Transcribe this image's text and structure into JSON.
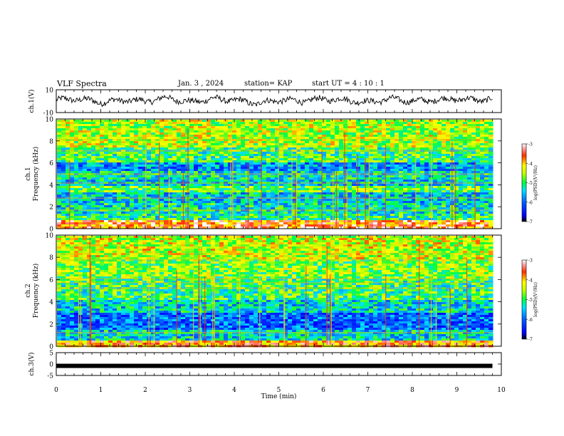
{
  "header": {
    "title": "VLF Spectra",
    "date": "Jan. 3 , 2024",
    "station": "station= KAP",
    "start": "start UT = 4 : 10 : 1"
  },
  "chart_data": [
    {
      "type": "line",
      "title": "",
      "ylabel": "ch.1(V)",
      "xlim": [
        0,
        10
      ],
      "ylim": [
        -10,
        10
      ],
      "yticks": [
        "10",
        "-10"
      ],
      "series": [
        {
          "description": "noisy waveform around 0 V, roughly -5 to +5 V",
          "x": [
            0,
            0.5,
            1,
            1.5,
            2,
            2.5,
            3,
            3.5,
            4,
            4.5,
            5,
            5.5,
            6,
            6.5,
            7,
            7.5,
            8,
            8.5,
            9,
            9.5,
            9.8
          ],
          "values": [
            1,
            2,
            -1,
            1,
            0,
            3,
            -1,
            2,
            1,
            -2,
            1,
            0,
            2,
            1,
            -1,
            2,
            0,
            1,
            2,
            1,
            2
          ]
        }
      ]
    },
    {
      "type": "heatmap",
      "panel": "ch1-spectrogram",
      "ylabel": "ch.1\nFrequency (kHz)",
      "xlim": [
        0,
        10
      ],
      "ylim": [
        0,
        10
      ],
      "yticks": [
        "0",
        "2",
        "4",
        "6",
        "8",
        "10"
      ],
      "data_end_min": 9.8,
      "colorbar": {
        "label": "log(PSD)(V²/Hz)",
        "range": [
          -7,
          -3
        ],
        "ticks": [
          "-3",
          "-4",
          "-5",
          "-6",
          "-7"
        ]
      },
      "bands": [
        {
          "f": [
            0.0,
            0.8
          ],
          "level": -3.6
        },
        {
          "f": [
            0.8,
            1.5
          ],
          "level": -5.1
        },
        {
          "f": [
            1.5,
            2.5
          ],
          "level": -5.3
        },
        {
          "f": [
            2.5,
            3.5
          ],
          "level": -5.5
        },
        {
          "f": [
            3.5,
            4.0
          ],
          "level": -4.8
        },
        {
          "f": [
            4.0,
            4.6
          ],
          "level": -5.5
        },
        {
          "f": [
            4.6,
            5.4
          ],
          "level": -5.3
        },
        {
          "f": [
            5.4,
            6.2
          ],
          "level": -5.8
        },
        {
          "f": [
            6.2,
            7.5
          ],
          "level": -5.0
        },
        {
          "f": [
            7.5,
            10.0
          ],
          "level": -4.5
        }
      ]
    },
    {
      "type": "heatmap",
      "panel": "ch2-spectrogram",
      "ylabel": "ch.2\nFrequency (kHz)",
      "xlim": [
        0,
        10
      ],
      "ylim": [
        0,
        10
      ],
      "yticks": [
        "0",
        "2",
        "4",
        "6",
        "8",
        "10"
      ],
      "data_end_min": 9.8,
      "colorbar": {
        "label": "log(PSD)(V²/Hz)",
        "range": [
          -7,
          -3
        ],
        "ticks": [
          "-3",
          "-4",
          "-5",
          "-6",
          "-7"
        ]
      },
      "bands": [
        {
          "f": [
            0.0,
            0.6
          ],
          "level": -3.8
        },
        {
          "f": [
            0.6,
            1.6
          ],
          "level": -5.4
        },
        {
          "f": [
            1.6,
            3.2
          ],
          "level": -6.0
        },
        {
          "f": [
            3.2,
            4.3
          ],
          "level": -5.4
        },
        {
          "f": [
            4.3,
            6.2
          ],
          "level": -5.0
        },
        {
          "f": [
            6.2,
            8.0
          ],
          "level": -4.7
        },
        {
          "f": [
            8.0,
            10.0
          ],
          "level": -4.4
        }
      ]
    },
    {
      "type": "line",
      "ylabel": "ch.3(V)",
      "xlim": [
        0,
        10
      ],
      "ylim": [
        -5,
        5
      ],
      "yticks": [
        "5",
        "0",
        "-5"
      ],
      "xlabel": "Time (min)",
      "xticks": [
        "0",
        "1",
        "2",
        "3",
        "4",
        "5",
        "6",
        "7",
        "8",
        "9",
        "10"
      ],
      "series": [
        {
          "description": "thick flat trace near -0.8 V",
          "x": [
            0,
            9.8
          ],
          "values": [
            -0.8,
            -0.8
          ]
        }
      ]
    }
  ]
}
